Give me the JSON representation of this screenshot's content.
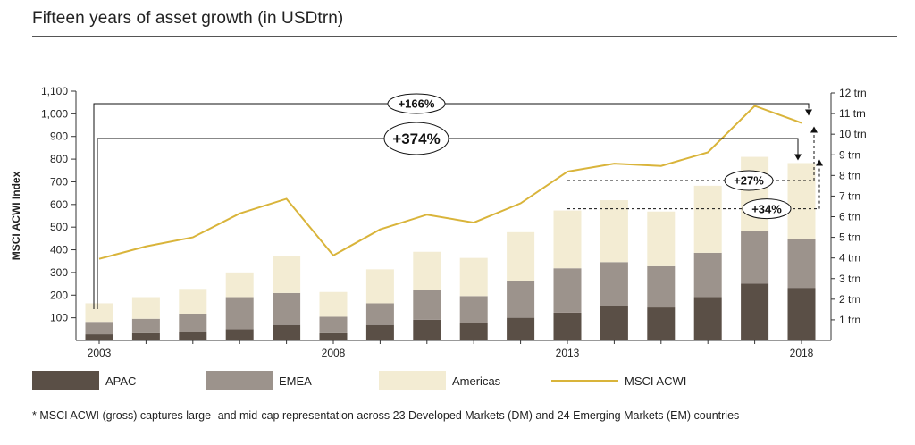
{
  "title": "Fifteen years of asset growth (in USDtrn)",
  "footnote": "* MSCI ACWI (gross) captures large- and mid-cap representation across 23 Developed Markets (DM) and 24 Emerging Markets (EM) countries",
  "colors": {
    "apac": "#5a4f46",
    "emea": "#9c938c",
    "americas": "#f3ecd3",
    "msci": "#d9b43a",
    "axis": "#333333"
  },
  "chart_data": {
    "type": "bar",
    "x": [
      2003,
      2004,
      2005,
      2006,
      2007,
      2008,
      2009,
      2010,
      2011,
      2012,
      2013,
      2014,
      2015,
      2016,
      2017,
      2018
    ],
    "xtick_labels": [
      "2003",
      "2008",
      "2013",
      "2018"
    ],
    "ylabel": "MSCI ACWI Index",
    "ylim": [
      0,
      1100
    ],
    "yticks": [
      "100",
      "200",
      "300",
      "400",
      "500",
      "600",
      "700",
      "800",
      "900",
      "1,000",
      "1,100"
    ],
    "y2lim": [
      0,
      12
    ],
    "y2ticks": [
      "1 trn",
      "2 trn",
      "3 trn",
      "4 trn",
      "5 trn",
      "6 trn",
      "7 trn",
      "8 trn",
      "9 trn",
      "10 trn",
      "11 trn",
      "12 trn"
    ],
    "stacked": true,
    "series": [
      {
        "name": "APAC",
        "axis": "right",
        "values": [
          0.3,
          0.35,
          0.4,
          0.55,
          0.75,
          0.35,
          0.75,
          1.0,
          0.85,
          1.1,
          1.35,
          1.65,
          1.6,
          2.1,
          2.75,
          2.55
        ]
      },
      {
        "name": "EMEA",
        "axis": "right",
        "values": [
          0.6,
          0.7,
          0.9,
          1.55,
          1.55,
          0.8,
          1.05,
          1.45,
          1.3,
          1.8,
          2.15,
          2.15,
          2.0,
          2.15,
          2.55,
          2.35
        ]
      },
      {
        "name": "Americas",
        "axis": "right",
        "values": [
          0.9,
          1.05,
          1.2,
          1.2,
          1.8,
          1.2,
          1.65,
          1.85,
          1.85,
          2.35,
          2.8,
          3.0,
          2.65,
          3.25,
          3.6,
          3.7
        ]
      },
      {
        "name": "MSCI ACWI",
        "type": "line",
        "axis": "left",
        "values": [
          360,
          415,
          455,
          560,
          625,
          375,
          490,
          555,
          520,
          605,
          745,
          780,
          770,
          830,
          1035,
          960
        ]
      }
    ],
    "annotations": [
      "+166%",
      "+374%",
      "+27%",
      "+34%"
    ],
    "legend": [
      "APAC",
      "EMEA",
      "Americas",
      "MSCI ACWI"
    ],
    "legend_position": "bottom",
    "grid": false
  }
}
